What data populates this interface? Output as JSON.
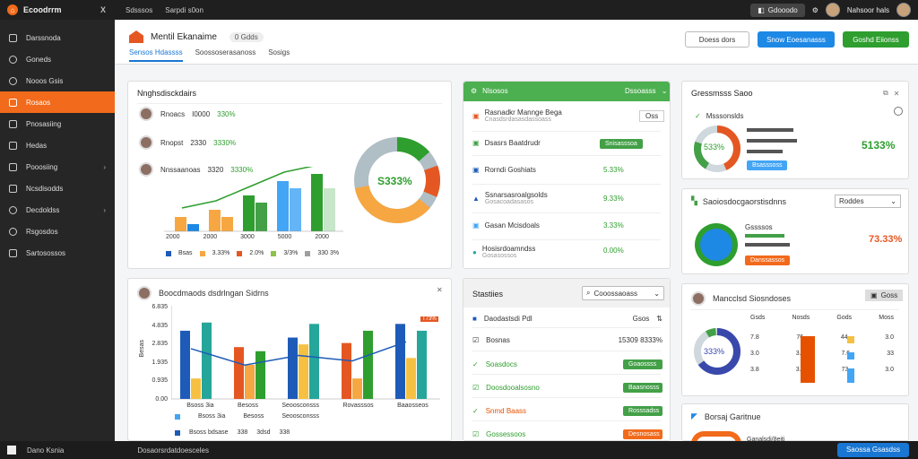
{
  "topbar": {
    "app": "Ecoodrrm",
    "close": "X",
    "menu": [
      "Sdsssos",
      "Sarpdi s0on"
    ],
    "pill": "Gdooodo",
    "user": "Nahsoor hals"
  },
  "sidebar": {
    "items": [
      {
        "label": "Darssnoda"
      },
      {
        "label": "Goneds"
      },
      {
        "label": "Nooos Gsis"
      },
      {
        "label": "Rosaos"
      },
      {
        "label": "Pnosasiing"
      },
      {
        "label": "Hedas"
      },
      {
        "label": "Pooosiing"
      },
      {
        "label": "Ncsdisodds"
      },
      {
        "label": "Decdoldss"
      },
      {
        "label": "Rsgosdos"
      },
      {
        "label": "Sartosossos"
      }
    ]
  },
  "header": {
    "title": "Mentil Ekanaime",
    "version": "0 Gdds",
    "tabs": [
      "Sensos Hdassss",
      "Soossoserasanoss",
      "Sosigs"
    ],
    "btn_a": "Doess dors",
    "btn_b": "Snow Eoesanasss",
    "btn_c": "Goshd Eiionss"
  },
  "card_top": {
    "title": "Nnghsdisckdairs",
    "people": [
      {
        "name": "Rnoacs",
        "v1": "I0000",
        "pct": "330%"
      },
      {
        "name": "Rnopst",
        "v1": "2330",
        "pct": "3330%"
      },
      {
        "name": "Nnssaanoas",
        "v1": "3320",
        "pct": "3330%"
      }
    ],
    "ticks": [
      "2000",
      "2000",
      "3000",
      "5000",
      "2000"
    ],
    "legend": [
      "Bsas",
      "3.33%",
      "2.0%",
      "3/3%",
      "330 3%"
    ],
    "donut": "S333%"
  },
  "card_mid": {
    "title": "Nlsosos",
    "dd": "Dssoasss",
    "rows": [
      {
        "t": "Rasnadkr Mannge Bega",
        "s": "Cnasdsrdasasdassoass",
        "v": ""
      },
      {
        "t": "Dsasrs Baatdrudr",
        "s": "",
        "v": "Snisasssoa"
      },
      {
        "t": "Rorndi Goshiats",
        "s": "",
        "v": "5.33%"
      },
      {
        "t": "Ssnarsasroalgsolds",
        "s": "Gosacoadasasos",
        "v": "9.33%"
      },
      {
        "t": "Gasan Mcisdoals",
        "s": "",
        "v": "3.33%"
      },
      {
        "t": "Hosisrdoamndss",
        "s": "Gosasossos",
        "v": "0.00%"
      }
    ]
  },
  "card_right1": {
    "title": "Gressmsss Saoo",
    "sub": "Msssonslds",
    "pct": "533%",
    "v": "5133%",
    "btn": "Bsasssoss"
  },
  "card_right2": {
    "title": "Saoiosdocgaorstisdnns",
    "dd": "Roddes",
    "lbl": "Gssssos",
    "v": "73.33%",
    "btn": "Danssassos"
  },
  "card_chart": {
    "title": "Boocdmaods dsdrlngan Sidrns",
    "ticks": [
      "6.835",
      "4.835",
      "2.835",
      "1.935",
      "0.935",
      "0.00"
    ],
    "ylabel": "Besas",
    "cats": [
      "Bsoss 3ia",
      "Besoss",
      "Seoosconsss",
      "Rovasssos",
      "Baaosseos"
    ],
    "tag": "T73%",
    "legend": [
      "Bsoss bdsase",
      "338",
      "3dsd",
      "338"
    ]
  },
  "card_stats": {
    "title": "Stastiies",
    "search": "Cooossaoass",
    "rows": [
      {
        "t": "Daodastsdi Pdl",
        "v": "Gsos"
      },
      {
        "t": "Bosnas",
        "v": "15309 8333%"
      },
      {
        "t": "Soasdocs",
        "v": "Goaossss"
      },
      {
        "t": "Doosdooalsosno",
        "v": "Baasnosss"
      },
      {
        "t": "Snmd Baass",
        "v": "Rosssadss"
      },
      {
        "t": "Gossessoos",
        "v": "Desnosass"
      }
    ]
  },
  "card_right3": {
    "title": "Mancclsd Siosndoses",
    "btn": "Goss",
    "cols": [
      "Gsds",
      "Nosds",
      "Gods",
      "Moss"
    ],
    "pct": "333%",
    "r1": [
      "7.8",
      "76",
      "44",
      "3.0"
    ],
    "r2": [
      "3.0",
      "3.3",
      "7.6",
      "33"
    ],
    "r3": [
      "3.8",
      "3.3",
      "73",
      "3.0"
    ]
  },
  "card_right4": {
    "title": "Borsaj Garitnue",
    "sub": "Ganalsdi/8eiti"
  },
  "bottombar": {
    "left": "Dano Ksnia",
    "mid": "Dosaorsrdatdoesceles",
    "help": "Saossa Gsasdss"
  },
  "chart_data": [
    {
      "type": "bar",
      "categories": [
        "2000",
        "2000",
        "3000",
        "5000",
        "2000"
      ],
      "series": [
        {
          "values": [
            1,
            1.5,
            2.5,
            3.5,
            4
          ]
        },
        {
          "values": [
            0.5,
            1,
            2,
            3,
            3
          ]
        }
      ]
    },
    {
      "type": "bar",
      "categories": [
        "Bsoss 3ia",
        "Besoss",
        "Seoosconsss",
        "Rovasssos",
        "Baaosseos"
      ],
      "ylim": [
        0,
        6.835
      ],
      "yticks": [
        "6.835",
        "4.835",
        "2.835",
        "1.935",
        "0.935",
        "0.00"
      ],
      "series": [
        {
          "values": [
            5,
            3.8,
            4.5,
            4.1,
            5.5
          ]
        },
        {
          "values": [
            1.5,
            2.5,
            4,
            1.5,
            3
          ]
        },
        {
          "values": [
            5.6,
            3.5,
            5.5,
            5,
            5
          ]
        }
      ]
    }
  ]
}
